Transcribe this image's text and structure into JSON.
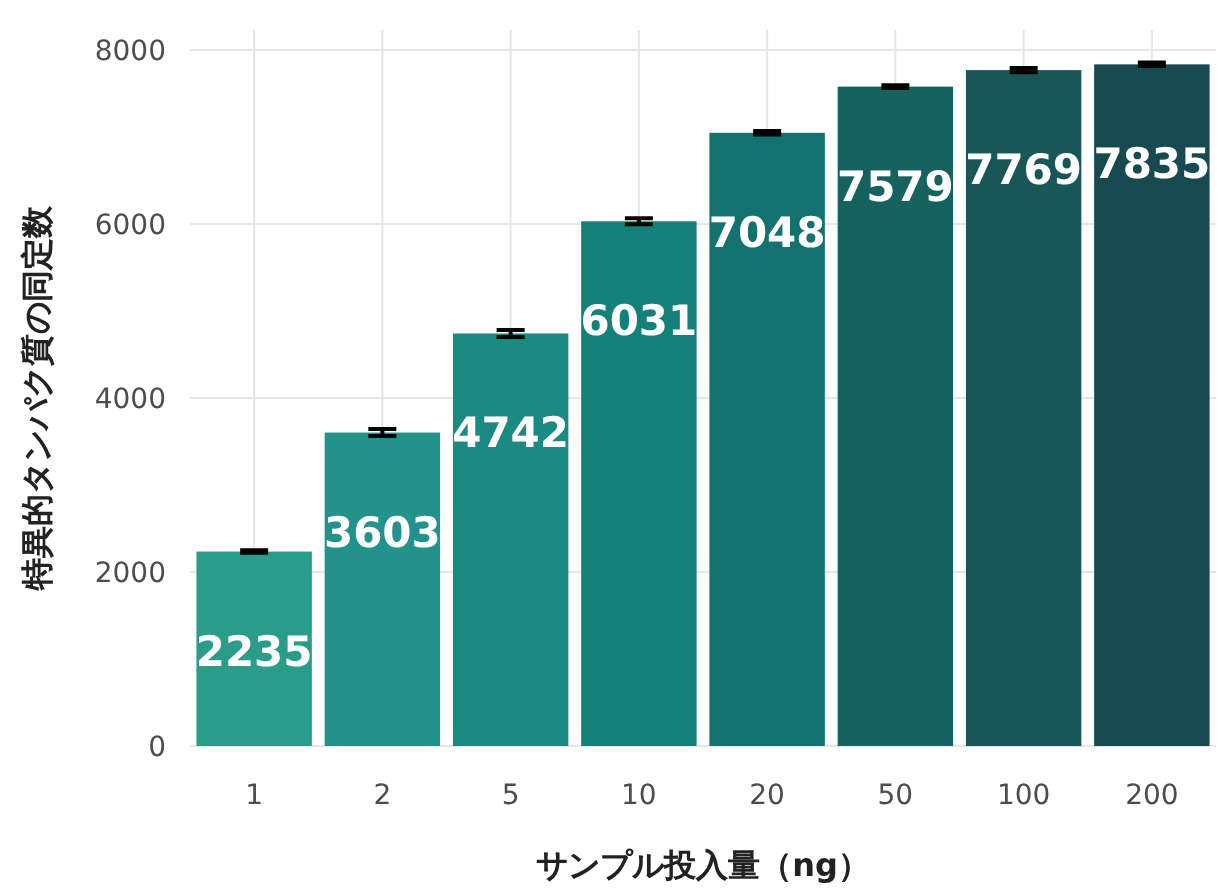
{
  "chart_data": {
    "type": "bar",
    "xlabel": "サンプル投入量（ng）",
    "ylabel": "特異的タンパク質の同定数",
    "categories": [
      "1",
      "2",
      "5",
      "10",
      "20",
      "50",
      "100",
      "200"
    ],
    "values": [
      2235,
      3603,
      4742,
      6031,
      7048,
      7579,
      7769,
      7835
    ],
    "errors": [
      15,
      40,
      40,
      35,
      20,
      15,
      25,
      20
    ],
    "colors": [
      "#2a9d8a",
      "#23928a",
      "#1a8a82",
      "#138079",
      "#117270",
      "#15625f",
      "#185658",
      "#174a50"
    ],
    "ylim": [
      0,
      8000
    ],
    "yticks": [
      0,
      2000,
      4000,
      6000,
      8000
    ],
    "grid": true,
    "data_labels": true
  }
}
